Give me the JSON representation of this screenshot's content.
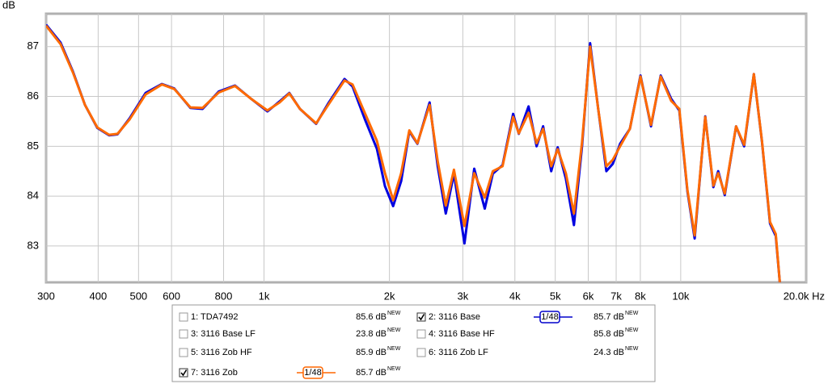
{
  "chart_data": {
    "type": "line",
    "ylabel": "dB",
    "xscale": "log",
    "grid": true,
    "xlim": [
      300,
      20000
    ],
    "ylim": [
      82.27,
      87.66
    ],
    "yticks": [
      83,
      84,
      85,
      86,
      87
    ],
    "xticks": [
      300,
      400,
      500,
      600,
      800,
      {
        "value": 1000,
        "label": "1k"
      },
      {
        "value": 2000,
        "label": "2k"
      },
      {
        "value": 3000,
        "label": "3k"
      },
      {
        "value": 4000,
        "label": "4k"
      },
      {
        "value": 5000,
        "label": "5k"
      },
      {
        "value": 6000,
        "label": "6k"
      },
      {
        "value": 7000,
        "label": "7k"
      },
      {
        "value": 8000,
        "label": "8k"
      },
      {
        "value": 10000,
        "label": "10k"
      },
      {
        "value": 20000,
        "label": "20.0k Hz"
      }
    ],
    "x": [
      300,
      325,
      348,
      372,
      398,
      425,
      445,
      476,
      520,
      569,
      609,
      666,
      712,
      779,
      852,
      932,
      1019,
      1090,
      1150,
      1220,
      1334,
      1426,
      1560,
      1631,
      1745,
      1866,
      1951,
      2041,
      2134,
      2232,
      2334,
      2497,
      2611,
      2731,
      2856,
      3027,
      3195,
      3386,
      3541,
      3737,
      3961,
      4087,
      4314,
      4510,
      4675,
      4889,
      5068,
      5300,
      5543,
      5797,
      6062,
      6339,
      6630,
      6873,
      7155,
      7551,
      8005,
      8485,
      8952,
      9487,
      9921,
      10375,
      10803,
      11451,
      11975,
      12300,
      12752,
      13576,
      14197,
      14980,
      15665,
      16383,
      16907,
      17289
    ],
    "series": [
      {
        "color": "#0000e0",
        "values": [
          87.44,
          87.08,
          86.5,
          85.83,
          85.37,
          85.22,
          85.24,
          85.56,
          86.07,
          86.25,
          86.16,
          85.77,
          85.75,
          86.1,
          86.22,
          85.95,
          85.7,
          85.9,
          86.07,
          85.75,
          85.45,
          85.86,
          86.35,
          86.2,
          85.55,
          84.95,
          84.2,
          83.8,
          84.3,
          85.3,
          85.05,
          85.88,
          84.6,
          83.65,
          84.45,
          83.05,
          84.55,
          83.75,
          84.45,
          84.62,
          85.65,
          85.25,
          85.8,
          85.0,
          85.4,
          84.5,
          84.98,
          84.35,
          83.42,
          85.0,
          87.07,
          85.75,
          84.5,
          84.65,
          85.05,
          85.35,
          86.42,
          85.4,
          86.42,
          85.95,
          85.72,
          84.1,
          83.15,
          85.6,
          84.18,
          84.5,
          84.02,
          85.4,
          85.0,
          86.45,
          85.1,
          83.45,
          83.2,
          82.27
        ]
      },
      {
        "color": "#ff6a00",
        "values": [
          87.42,
          87.05,
          86.48,
          85.83,
          85.38,
          85.23,
          85.25,
          85.54,
          86.04,
          86.24,
          86.15,
          85.78,
          85.77,
          86.08,
          86.21,
          85.95,
          85.72,
          85.88,
          86.06,
          85.75,
          85.46,
          85.83,
          86.32,
          86.24,
          85.67,
          85.11,
          84.46,
          83.92,
          84.46,
          85.32,
          85.06,
          85.83,
          84.7,
          83.81,
          84.53,
          83.4,
          84.46,
          83.97,
          84.5,
          84.6,
          85.59,
          85.26,
          85.67,
          85.06,
          85.35,
          84.6,
          84.94,
          84.46,
          83.65,
          85.08,
          87.0,
          85.75,
          84.6,
          84.73,
          85.0,
          85.35,
          86.4,
          85.43,
          86.4,
          85.91,
          85.75,
          84.13,
          83.21,
          85.59,
          84.21,
          84.46,
          84.05,
          85.4,
          85.03,
          86.45,
          85.11,
          83.48,
          83.24,
          82.27
        ]
      }
    ]
  },
  "legend": {
    "entries": [
      {
        "name": "1: TDA7492",
        "reading": "85.6 dB",
        "badge": "NEW",
        "checked": false,
        "color": "#a0a0a0"
      },
      {
        "name": "2: 3116 Base",
        "reading": "85.7 dB",
        "badge": "NEW",
        "checked": true,
        "color": "#0000cc",
        "smoothing": "1/48"
      },
      {
        "name": "3: 3116 Base LF",
        "reading": "23.8 dB",
        "badge": "NEW",
        "checked": false,
        "color": "#d0103a"
      },
      {
        "name": "4: 3116 Base HF",
        "reading": "85.8 dB",
        "badge": "NEW",
        "checked": false,
        "color": "#3ee060"
      },
      {
        "name": "5: 3116 Zob HF",
        "reading": "85.9 dB",
        "badge": "NEW",
        "checked": false,
        "color": "#20d0d0"
      },
      {
        "name": "6: 3116 Zob LF",
        "reading": "24.3 dB",
        "badge": "NEW",
        "checked": false,
        "color": "#b020b0"
      },
      {
        "name": "7: 3116 Zob",
        "reading": "85.7 dB",
        "badge": "NEW",
        "checked": true,
        "color": "#ff6600",
        "smoothing": "1/48"
      }
    ]
  }
}
